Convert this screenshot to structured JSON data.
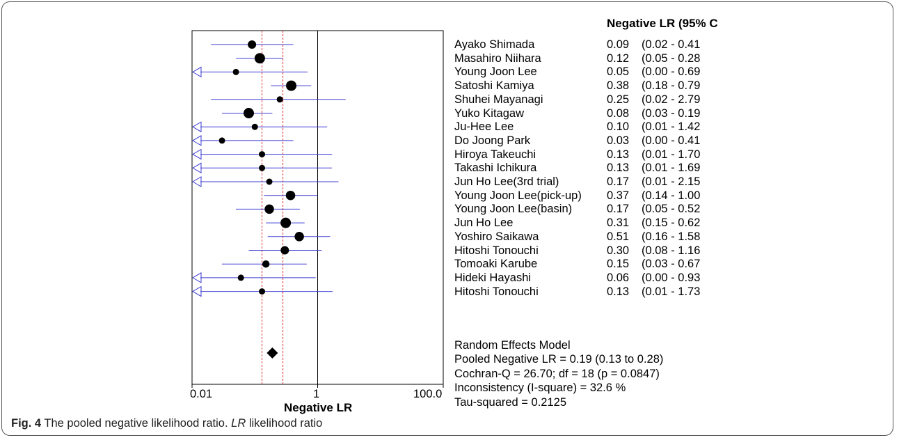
{
  "chart_data": {
    "type": "forest",
    "column_header": "Negative LR (95% C",
    "xlabel": "Negative LR",
    "x_scale": "log",
    "xlim": [
      0.01,
      100.0
    ],
    "x_ticks": [
      0.01,
      1,
      100.0
    ],
    "x_tick_labels": [
      "0.01",
      "1",
      "100.0"
    ],
    "reference_line": 1,
    "pooled_ci_lines": [
      0.13,
      0.28
    ],
    "studies": [
      {
        "name": "Ayako Shimada",
        "lr": 0.09,
        "lr_text": "0.09",
        "lower": 0.02,
        "upper": 0.41,
        "ci_text": "(0.02 - 0.41",
        "weight": 2
      },
      {
        "name": "Masahiro Niihara",
        "lr": 0.12,
        "lr_text": "0.12",
        "lower": 0.05,
        "upper": 0.28,
        "ci_text": "(0.05 - 0.28",
        "weight": 3
      },
      {
        "name": "Young Joon Lee",
        "lr": 0.05,
        "lr_text": "0.05",
        "lower": 0.0,
        "upper": 0.69,
        "ci_text": "(0.00 - 0.69",
        "weight": 1
      },
      {
        "name": "Satoshi Kamiya",
        "lr": 0.38,
        "lr_text": "0.38",
        "lower": 0.18,
        "upper": 0.79,
        "ci_text": "(0.18 - 0.79",
        "weight": 3
      },
      {
        "name": "Shuhei Mayanagi",
        "lr": 0.25,
        "lr_text": "0.25",
        "lower": 0.02,
        "upper": 2.79,
        "ci_text": "(0.02 - 2.79",
        "weight": 1
      },
      {
        "name": "Yuko Kitagaw",
        "lr": 0.08,
        "lr_text": "0.08",
        "lower": 0.03,
        "upper": 0.19,
        "ci_text": "(0.03 - 0.19",
        "weight": 3
      },
      {
        "name": "Ju-Hee Lee",
        "lr": 0.1,
        "lr_text": "0.10",
        "lower": 0.01,
        "upper": 1.42,
        "ci_text": "(0.01 - 1.42",
        "weight": 1
      },
      {
        "name": "Do Joong Park",
        "lr": 0.03,
        "lr_text": "0.03",
        "lower": 0.0,
        "upper": 0.41,
        "ci_text": "(0.00 - 0.41",
        "weight": 1
      },
      {
        "name": "Hiroya Takeuchi",
        "lr": 0.13,
        "lr_text": "0.13",
        "lower": 0.01,
        "upper": 1.7,
        "ci_text": "(0.01 - 1.70",
        "weight": 1
      },
      {
        "name": "Takashi Ichikura",
        "lr": 0.13,
        "lr_text": "0.13",
        "lower": 0.01,
        "upper": 1.69,
        "ci_text": "(0.01 - 1.69",
        "weight": 1
      },
      {
        "name": "Jun Ho Lee(3rd trial)",
        "lr": 0.17,
        "lr_text": "0.17",
        "lower": 0.01,
        "upper": 2.15,
        "ci_text": "(0.01 - 2.15",
        "weight": 1
      },
      {
        "name": "Young Joon Lee(pick-up)",
        "lr": 0.37,
        "lr_text": "0.37",
        "lower": 0.14,
        "upper": 1.0,
        "ci_text": "(0.14 - 1.00",
        "weight": 2.5
      },
      {
        "name": "Young Joon Lee(basin)",
        "lr": 0.17,
        "lr_text": "0.17",
        "lower": 0.05,
        "upper": 0.52,
        "ci_text": "(0.05 - 0.52",
        "weight": 2.5
      },
      {
        "name": "Jun Ho Lee",
        "lr": 0.31,
        "lr_text": "0.31",
        "lower": 0.15,
        "upper": 0.62,
        "ci_text": "(0.15 - 0.62",
        "weight": 3
      },
      {
        "name": "Yoshiro Saikawa",
        "lr": 0.51,
        "lr_text": "0.51",
        "lower": 0.16,
        "upper": 1.58,
        "ci_text": "(0.16 - 1.58",
        "weight": 2.5
      },
      {
        "name": "Hitoshi Tonouchi",
        "lr": 0.3,
        "lr_text": "0.30",
        "lower": 0.08,
        "upper": 1.16,
        "ci_text": "(0.08 - 1.16",
        "weight": 2
      },
      {
        "name": "Tomoaki Karube",
        "lr": 0.15,
        "lr_text": "0.15",
        "lower": 0.03,
        "upper": 0.67,
        "ci_text": "(0.03 - 0.67",
        "weight": 1.5
      },
      {
        "name": "Hideki Hayashi",
        "lr": 0.06,
        "lr_text": "0.06",
        "lower": 0.0,
        "upper": 0.93,
        "ci_text": "(0.00 - 0.93",
        "weight": 1
      },
      {
        "name": "Hitoshi Tonouchi",
        "lr": 0.13,
        "lr_text": "0.13",
        "lower": 0.01,
        "upper": 1.73,
        "ci_text": "(0.01 - 1.73",
        "weight": 1
      }
    ],
    "pooled": {
      "lr": 0.19,
      "lower": 0.13,
      "upper": 0.28
    },
    "summary_lines": [
      "Random Effects Model",
      "Pooled Negative LR = 0.19 (0.13 to 0.28)",
      "Cochran-Q = 26.70; df =  18 (p = 0.0847)",
      "Inconsistency (I-square) = 32.6 %",
      "Tau-squared = 0.2125"
    ],
    "colors": {
      "ci_line": "#3b3bd1",
      "pooled_ci": "#e03030",
      "point": "#000000",
      "axis": "#000000"
    }
  },
  "caption": {
    "label": "Fig. 4",
    "text_before": " The pooled negative likelihood ratio. ",
    "abbr": "LR",
    "text_after": " likelihood ratio"
  }
}
